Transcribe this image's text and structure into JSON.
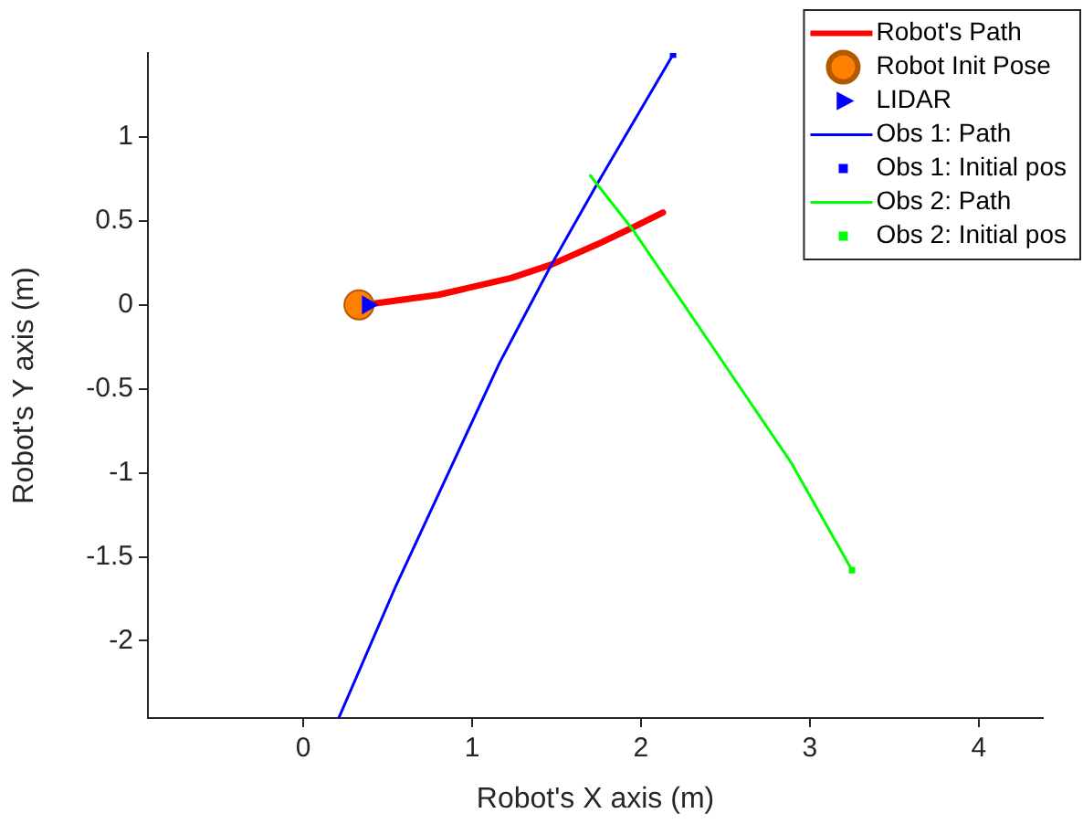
{
  "chart_data": {
    "type": "line",
    "xlabel": "Robot's X axis (m)",
    "ylabel": "Robot's Y axis (m)",
    "xlim": [
      -0.92,
      4.38
    ],
    "ylim": [
      -2.46,
      1.5
    ],
    "xticks": [
      0,
      1,
      2,
      3,
      4
    ],
    "yticks": [
      -2,
      -1.5,
      -1,
      -0.5,
      0,
      0.5,
      1
    ],
    "grid": false,
    "legend": "top right",
    "series": [
      {
        "name": "Robot's Path",
        "type": "line",
        "marker": "none",
        "color": "#ff0000",
        "x": [
          0.36,
          0.8,
          1.23,
          1.47,
          1.74,
          1.95,
          2.13
        ],
        "values": [
          0,
          0.06,
          0.16,
          0.24,
          0.36,
          0.46,
          0.55
        ]
      },
      {
        "name": "Robot Init Pose",
        "type": "scatter",
        "marker": "circle",
        "color": "#ff8000",
        "x": [
          0.33
        ],
        "values": [
          0
        ]
      },
      {
        "name": "LIDAR",
        "type": "scatter",
        "marker": "triangle",
        "color": "#0000ff",
        "x": [
          0.38
        ],
        "values": [
          0
        ]
      },
      {
        "name": "Obs 1: Path",
        "type": "line",
        "marker": "none",
        "color": "#0000ff",
        "x": [
          2.19,
          1.74,
          1.47,
          1.27,
          1.16,
          0.55,
          0.21
        ],
        "values": [
          1.49,
          0.72,
          0.24,
          -0.14,
          -0.35,
          -1.67,
          -2.46
        ]
      },
      {
        "name": "Obs 1: Initial pos",
        "type": "scatter",
        "marker": "square",
        "color": "#0000ff",
        "x": [
          2.19
        ],
        "values": [
          1.49
        ]
      },
      {
        "name": "Obs 2: Path",
        "type": "line",
        "marker": "none",
        "color": "#00ff00",
        "x": [
          1.7,
          1.95,
          2.35,
          2.89,
          3.25
        ],
        "values": [
          0.77,
          0.45,
          -0.14,
          -0.94,
          -1.58
        ]
      },
      {
        "name": "Obs 2: Initial pos",
        "type": "scatter",
        "marker": "square",
        "color": "#00ff00",
        "x": [
          3.25
        ],
        "values": [
          -1.58
        ]
      }
    ]
  }
}
